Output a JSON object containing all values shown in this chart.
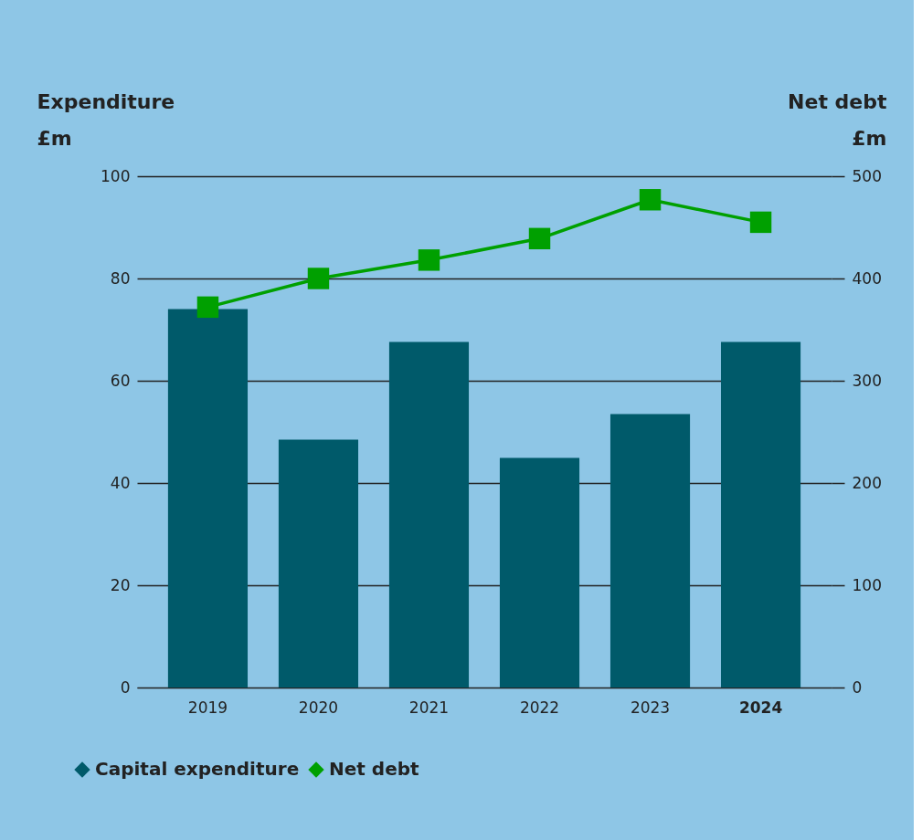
{
  "chart_data": {
    "type": "bar",
    "categories": [
      "2019",
      "2020",
      "2021",
      "2022",
      "2023",
      "2024"
    ],
    "ylabel": "Expenditure £m",
    "y2label": "Net debt £m",
    "series": [
      {
        "name": "Capital expenditure",
        "color": "#005a6a",
        "values": [
          74.0,
          48.5,
          67.6,
          44.9,
          53.5,
          67.6
        ]
      },
      {
        "name": "Net debt",
        "color": "#00a000",
        "type": "line",
        "axis": "y2",
        "values": [
          372,
          400,
          418,
          439,
          477,
          455
        ]
      }
    ],
    "ylim": [
      0,
      100
    ],
    "yticks": [
      0,
      20,
      40,
      60,
      80,
      100
    ],
    "y2lim": [
      0,
      500
    ],
    "y2ticks": [
      0,
      100,
      200,
      300,
      400,
      500
    ],
    "grid": "y",
    "legend": "bottom left",
    "marker": "square"
  }
}
